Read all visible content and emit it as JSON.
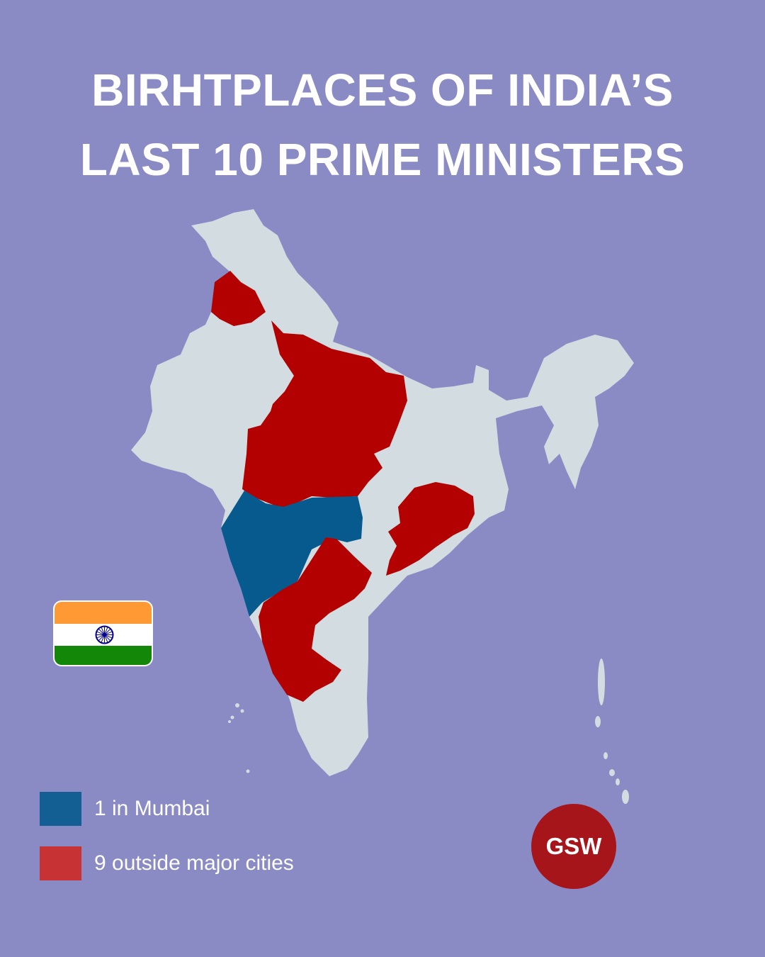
{
  "title": {
    "line1": "BIRHTPLACES OF INDIA’S",
    "line2": "LAST 10 PRIME MINISTERS"
  },
  "colors": {
    "background": "#8a8ac4",
    "land": "#d3dce0",
    "outside_major_cities": "#b30000",
    "mumbai": "#075a8e",
    "legend_mumbai": "#135f94",
    "legend_outside": "#c73234",
    "logo": "#a5151a"
  },
  "map": {
    "highlighted_regions": [
      {
        "region": "Punjab",
        "category": "outside-major-cities"
      },
      {
        "region": "Uttar Pradesh",
        "category": "outside-major-cities"
      },
      {
        "region": "Madhya Pradesh",
        "category": "outside-major-cities"
      },
      {
        "region": "Maharashtra",
        "category": "mumbai"
      },
      {
        "region": "Telangana",
        "category": "outside-major-cities"
      },
      {
        "region": "Karnataka",
        "category": "outside-major-cities"
      },
      {
        "region": "Odisha",
        "category": "outside-major-cities"
      }
    ]
  },
  "flag": {
    "icon": "india-flag-icon"
  },
  "legend": [
    {
      "label": "1 in Mumbai",
      "count": 1,
      "color": "#135f94"
    },
    {
      "label": "9 outside major cities",
      "count": 9,
      "color": "#c73234"
    }
  ],
  "logo": {
    "text": "GSW"
  }
}
